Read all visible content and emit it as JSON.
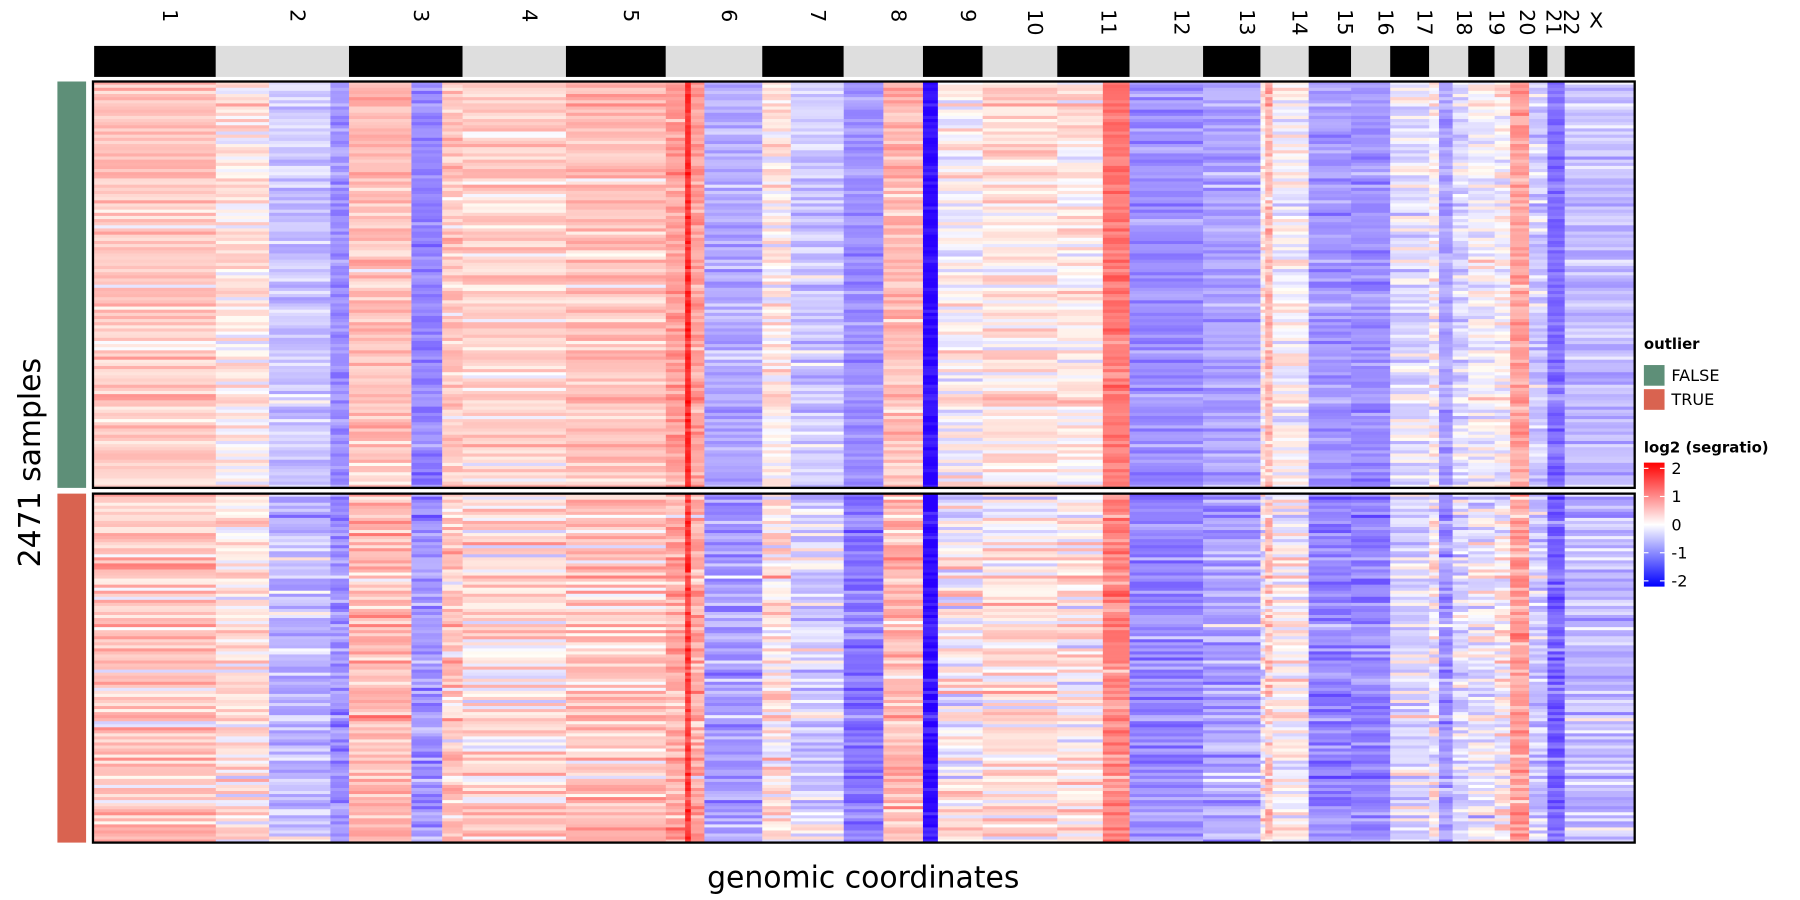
{
  "chart_data": {
    "type": "heatmap",
    "xlabel": "genomic coordinates",
    "ylabel": "2471 samples",
    "chromosomes": [
      "1",
      "2",
      "3",
      "4",
      "5",
      "6",
      "7",
      "8",
      "9",
      "10",
      "11",
      "12",
      "13",
      "14",
      "15",
      "16",
      "17",
      "18",
      "19",
      "20",
      "21",
      "22",
      "X"
    ],
    "groups": [
      {
        "name": "FALSE",
        "color": "#5E8F78",
        "segment_means": [
          [
            0.3
          ],
          [
            0.1,
            -0.3,
            -0.7
          ],
          [
            0.35,
            -0.8,
            0.3
          ],
          [
            0.25
          ],
          [
            0.35
          ],
          [
            0.6,
            1.6,
            0.6,
            -0.5
          ],
          [
            0.1,
            -0.3
          ],
          [
            -0.7,
            0.4
          ],
          [
            -1.9,
            0.0
          ],
          [
            0.15
          ],
          [
            0.1,
            0.9
          ],
          [
            -0.7
          ],
          [
            -0.55
          ],
          [
            0.1,
            0.4,
            0.0
          ],
          [
            -0.65
          ],
          [
            -0.7
          ],
          [
            -0.15
          ],
          [
            0.0,
            -0.6,
            -0.2
          ],
          [
            0.0
          ],
          [
            0.0,
            0.6
          ],
          [
            -0.3
          ],
          [
            -1.0
          ],
          [
            -0.35
          ]
        ]
      },
      {
        "name": "TRUE",
        "color": "#D96350",
        "segment_means": [
          [
            0.3
          ],
          [
            0.1,
            -0.4,
            -0.7
          ],
          [
            0.4,
            -0.7,
            0.3
          ],
          [
            0.2
          ],
          [
            0.3
          ],
          [
            0.5,
            1.4,
            0.5,
            -0.6
          ],
          [
            0.1,
            -0.3
          ],
          [
            -0.9,
            0.4
          ],
          [
            -1.9,
            0.0
          ],
          [
            0.1
          ],
          [
            0.1,
            0.8
          ],
          [
            -0.8
          ],
          [
            -0.6
          ],
          [
            0.0,
            0.3,
            0.0
          ],
          [
            -0.8
          ],
          [
            -0.8
          ],
          [
            -0.2
          ],
          [
            0.0,
            -0.7,
            -0.2
          ],
          [
            -0.1
          ],
          [
            0.0,
            0.6
          ],
          [
            -0.3
          ],
          [
            -1.1
          ],
          [
            -0.4
          ]
        ]
      }
    ],
    "color_scale": {
      "min": -2,
      "mid": 0,
      "max": 2,
      "low": "#0000FF",
      "midColor": "#FFFFFF",
      "high": "#FF0000"
    }
  },
  "legend": {
    "outlier_title": "outlier",
    "outlier_items": [
      {
        "label": "FALSE",
        "color": "#5E8F78"
      },
      {
        "label": "TRUE",
        "color": "#D96350"
      }
    ],
    "scale_title": "log2 (segratio)",
    "scale_ticks": [
      "2",
      "1",
      "0",
      "-1",
      "-2"
    ]
  }
}
